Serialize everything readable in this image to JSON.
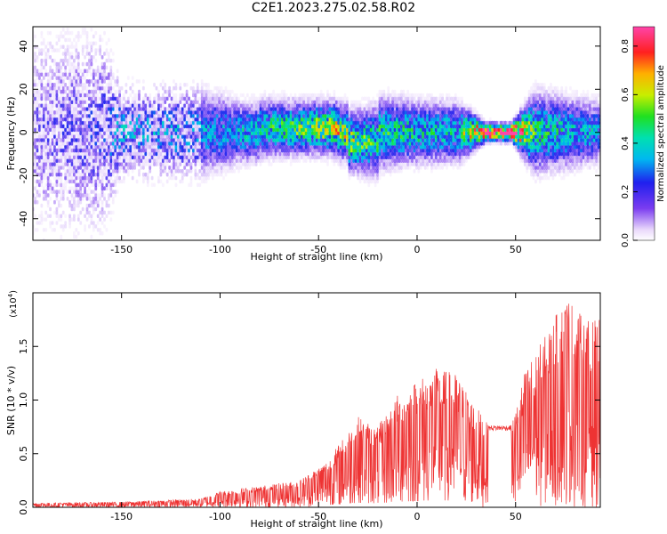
{
  "figure_title": "C2E1.2023.275.02.58.R02",
  "colorbar": {
    "label": "Normalized spectral amplitude",
    "ticks": [
      "0.0",
      "0.2",
      "0.4",
      "0.6",
      "0.8"
    ],
    "tick_values": [
      0.0,
      0.2,
      0.4,
      0.6,
      0.8
    ],
    "range": [
      0,
      0.88
    ]
  },
  "chart_data": [
    {
      "type": "heatmap",
      "title": "",
      "xlabel": "Height of straight line (km)",
      "ylabel": "Frequency (Hz)",
      "xlim": [
        -195,
        93
      ],
      "ylim": [
        -50,
        49
      ],
      "xticks": [
        -150,
        -100,
        -50,
        0,
        50
      ],
      "xtick_labels": [
        "-150",
        "-100",
        "-50",
        "0",
        "50"
      ],
      "yticks": [
        -40,
        -20,
        0,
        20,
        40
      ],
      "ytick_labels": [
        "-40",
        "-20",
        "0",
        "20",
        "40"
      ],
      "band_profile": [
        {
          "x": -195,
          "halfwidth": 45,
          "peak": 0.15
        },
        {
          "x": -160,
          "halfwidth": 45,
          "peak": 0.2
        },
        {
          "x": -150,
          "halfwidth": 20,
          "peak": 0.3
        },
        {
          "x": -110,
          "halfwidth": 20,
          "peak": 0.28
        },
        {
          "x": -90,
          "halfwidth": 14,
          "peak": 0.32
        },
        {
          "x": -60,
          "halfwidth": 12,
          "peak": 0.45
        },
        {
          "x": -40,
          "halfwidth": 12,
          "peak": 0.55
        },
        {
          "x": -20,
          "halfwidth": 16,
          "peak": 0.4
        },
        {
          "x": 0,
          "halfwidth": 14,
          "peak": 0.38
        },
        {
          "x": 20,
          "halfwidth": 14,
          "peak": 0.35
        },
        {
          "x": 35,
          "halfwidth": 4,
          "peak": 0.85
        },
        {
          "x": 48,
          "halfwidth": 4,
          "peak": 0.85
        },
        {
          "x": 60,
          "halfwidth": 18,
          "peak": 0.4
        },
        {
          "x": 93,
          "halfwidth": 14,
          "peak": 0.3
        }
      ]
    },
    {
      "type": "line",
      "title": "",
      "xlabel": "Height of straight line (km)",
      "ylabel": "SNR (10 * v/v)",
      "yscale_label": "(x10",
      "yscale_exponent": "4",
      "yscale_close": ")",
      "xlim": [
        -195,
        93
      ],
      "ylim": [
        0,
        2.0
      ],
      "xticks": [
        -150,
        -100,
        -50,
        0,
        50
      ],
      "xtick_labels": [
        "-150",
        "-100",
        "-50",
        "0",
        "50"
      ],
      "yticks": [
        0.0,
        0.5,
        1.0,
        1.5
      ],
      "ytick_labels": [
        "0.0",
        "0.5",
        "1.0",
        "1.5"
      ],
      "series": [
        {
          "color": "#ee3333",
          "envelope": [
            {
              "x": -195,
              "y": 0.04
            },
            {
              "x": -150,
              "y": 0.05
            },
            {
              "x": -110,
              "y": 0.08
            },
            {
              "x": -100,
              "y": 0.15
            },
            {
              "x": -80,
              "y": 0.2
            },
            {
              "x": -60,
              "y": 0.25
            },
            {
              "x": -45,
              "y": 0.45
            },
            {
              "x": -30,
              "y": 0.85
            },
            {
              "x": -20,
              "y": 0.75
            },
            {
              "x": -10,
              "y": 1.05
            },
            {
              "x": 0,
              "y": 1.2
            },
            {
              "x": 10,
              "y": 1.3
            },
            {
              "x": 20,
              "y": 1.25
            },
            {
              "x": 30,
              "y": 0.95
            },
            {
              "x": 36,
              "y": 0.77
            },
            {
              "x": 48,
              "y": 0.77
            },
            {
              "x": 55,
              "y": 1.3
            },
            {
              "x": 65,
              "y": 1.6
            },
            {
              "x": 76,
              "y": 2.0
            },
            {
              "x": 85,
              "y": 1.75
            },
            {
              "x": 93,
              "y": 1.75
            }
          ],
          "plateau": {
            "x_start": 36,
            "x_end": 48,
            "y": 0.74
          }
        }
      ]
    }
  ]
}
